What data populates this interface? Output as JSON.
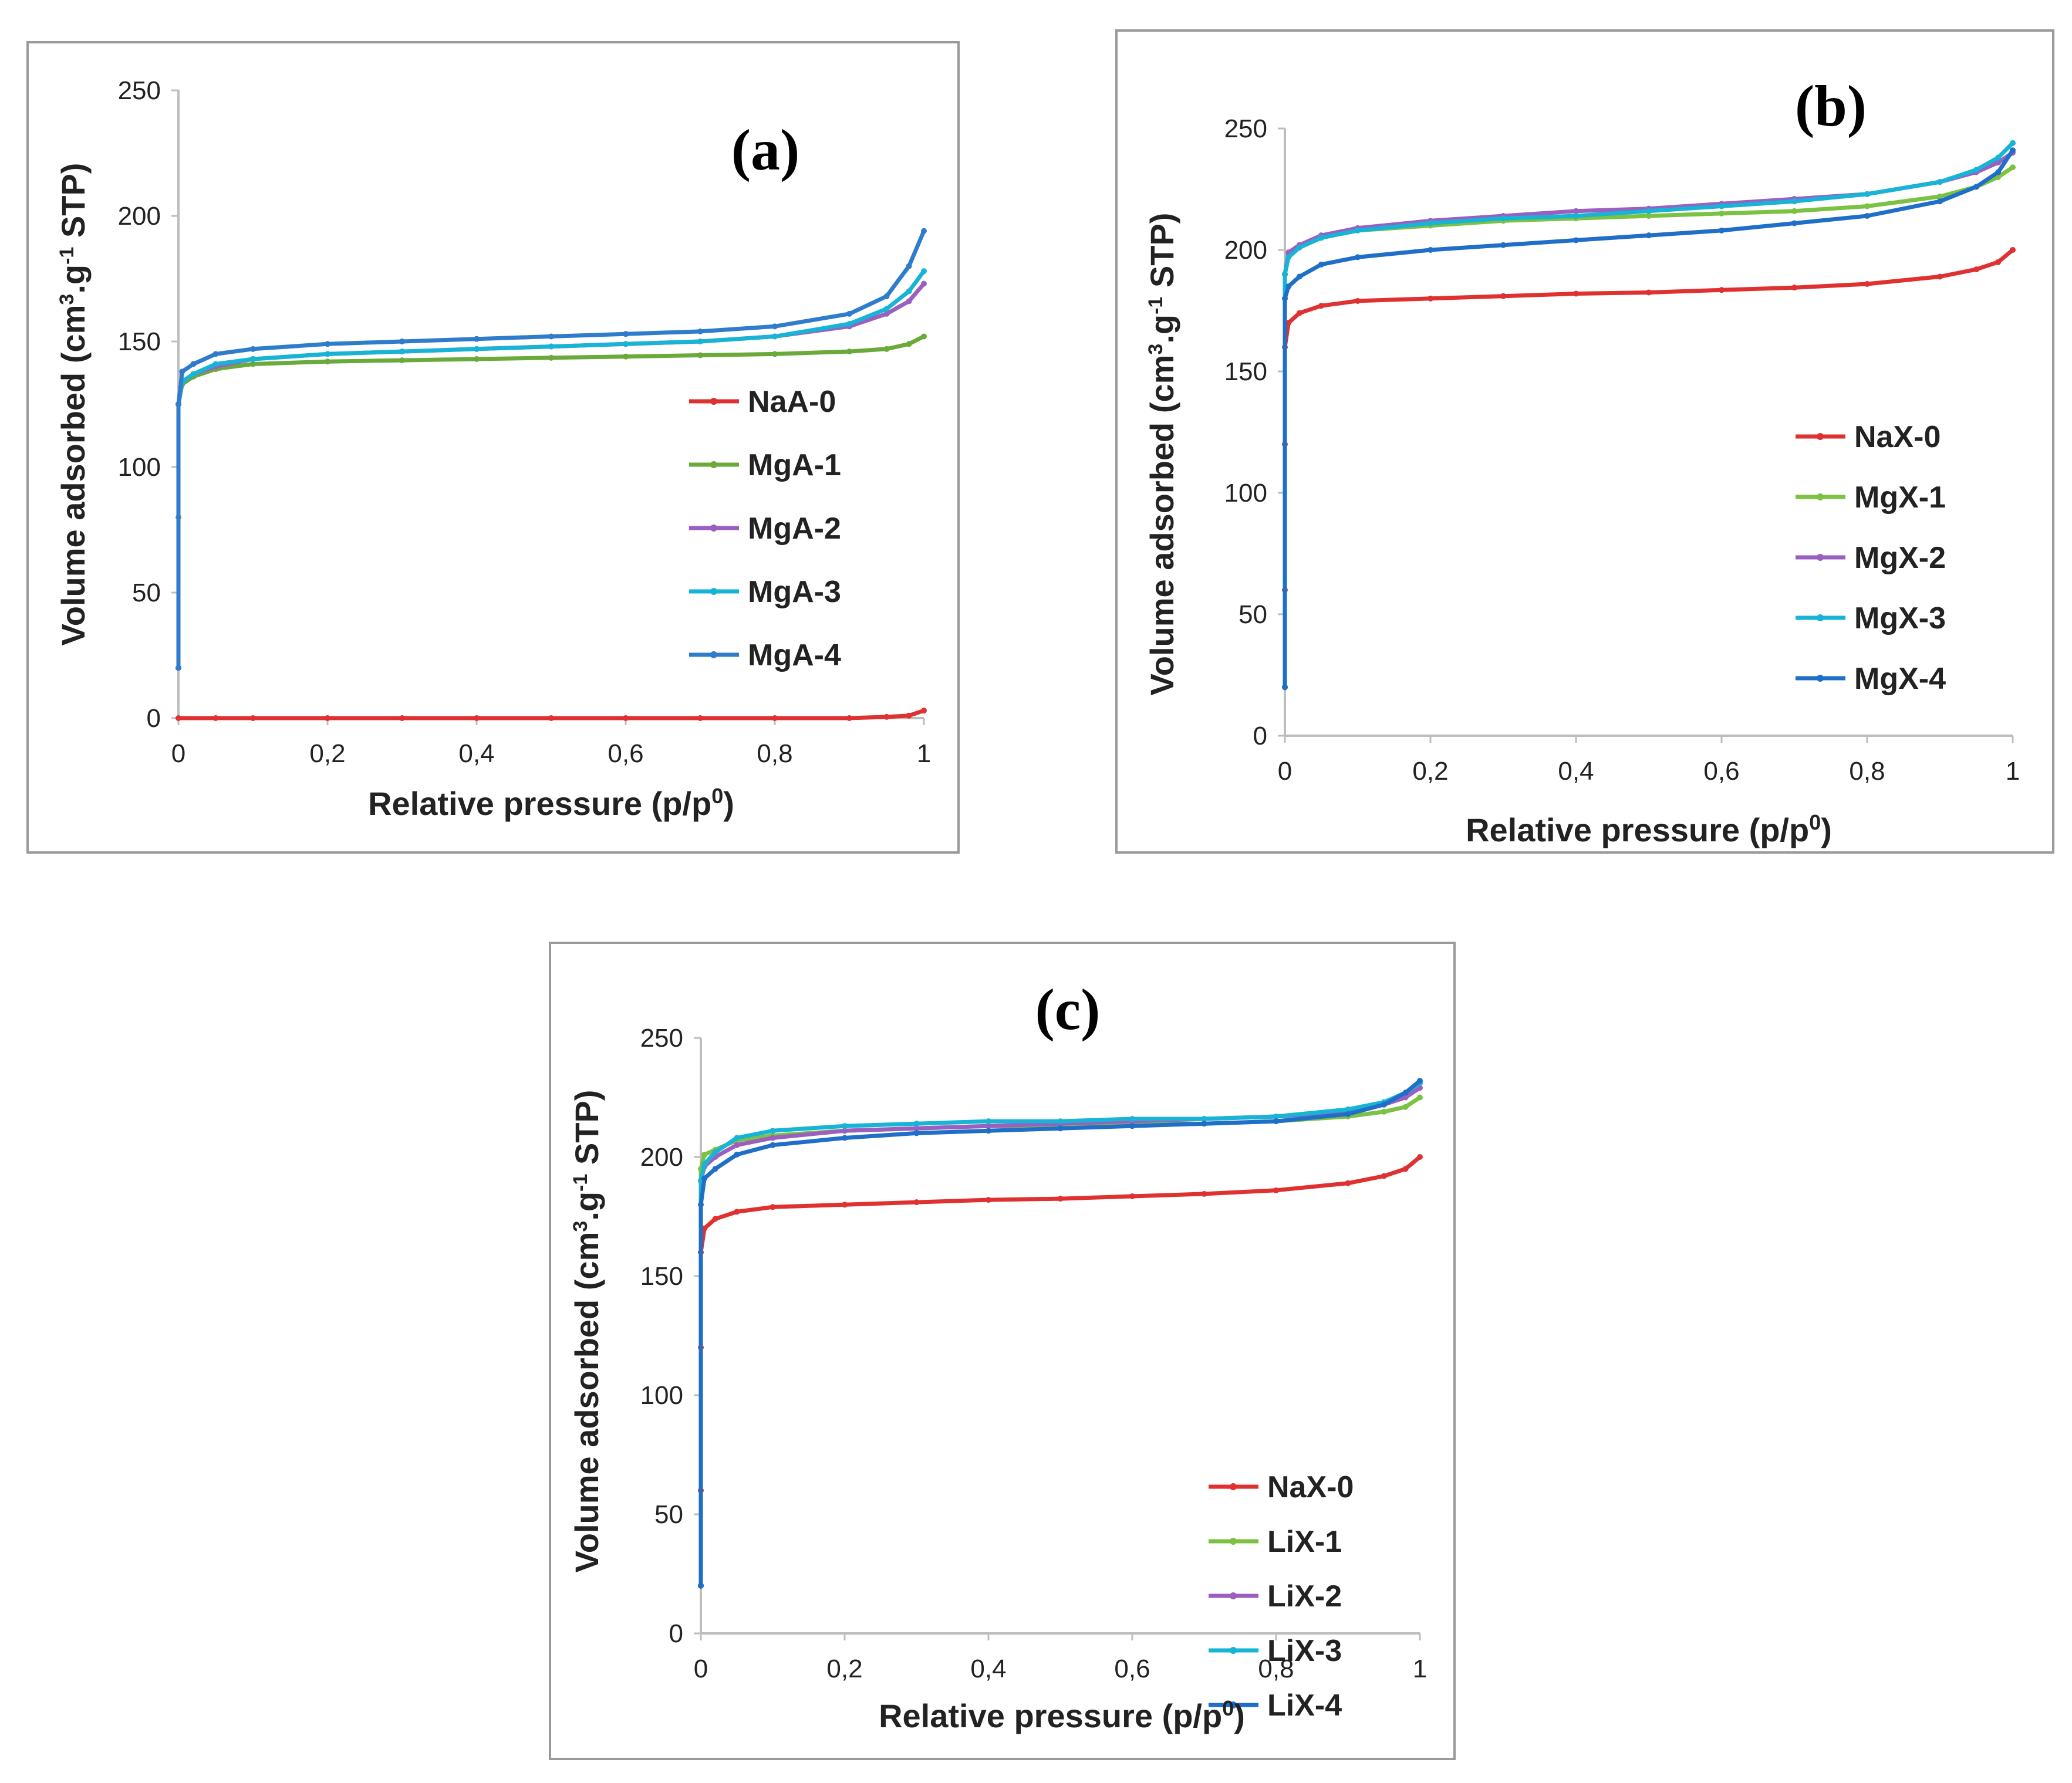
{
  "chart_data": [
    {
      "type": "line",
      "panel_label": "(a)",
      "xlabel": "Relative pressure (p/p",
      "xlabel_sup": "0",
      "xlabel_end": ")",
      "ylabel": "Volume  adsorbed (cm",
      "ylabel_sup1": "3",
      "ylabel_mid": ".g",
      "ylabel_sup2": "-1",
      "ylabel_end": " STP)",
      "xlim": [
        0,
        1
      ],
      "ylim": [
        0,
        250
      ],
      "xticks": [
        "0",
        "0,2",
        "0,4",
        "0,6",
        "0,8",
        "1"
      ],
      "yticks": [
        "0",
        "50",
        "100",
        "150",
        "200",
        "250"
      ],
      "legend_position": "center-right",
      "series": [
        {
          "name": "NaA-0",
          "color": "#e03131",
          "x": [
            0.0,
            0.05,
            0.1,
            0.2,
            0.3,
            0.4,
            0.5,
            0.6,
            0.7,
            0.8,
            0.9,
            0.95,
            0.98,
            1.0
          ],
          "y": [
            0,
            0,
            0,
            0,
            0,
            0,
            0,
            0,
            0,
            0,
            0,
            0.5,
            1,
            3
          ]
        },
        {
          "name": "MgA-1",
          "color": "#6aaa3a",
          "x": [
            0.0,
            0.0,
            0.0,
            0.005,
            0.02,
            0.05,
            0.1,
            0.2,
            0.3,
            0.4,
            0.5,
            0.6,
            0.7,
            0.8,
            0.9,
            0.95,
            0.98,
            1.0
          ],
          "y": [
            20,
            80,
            125,
            133,
            136,
            139,
            141,
            142,
            142.5,
            143,
            143.5,
            144,
            144.5,
            145,
            146,
            147,
            149,
            152
          ]
        },
        {
          "name": "MgA-2",
          "color": "#9b5fc0",
          "x": [
            0.0,
            0.0,
            0.005,
            0.02,
            0.05,
            0.1,
            0.2,
            0.3,
            0.4,
            0.5,
            0.6,
            0.7,
            0.8,
            0.9,
            0.95,
            0.98,
            1.0
          ],
          "y": [
            20,
            125,
            134,
            137,
            140,
            143,
            145,
            146,
            147,
            148,
            149,
            150,
            152,
            156,
            161,
            166,
            173
          ]
        },
        {
          "name": "MgA-3",
          "color": "#17b4d6",
          "x": [
            0.0,
            0.0,
            0.005,
            0.02,
            0.05,
            0.1,
            0.2,
            0.3,
            0.4,
            0.5,
            0.6,
            0.7,
            0.8,
            0.9,
            0.95,
            0.98,
            1.0
          ],
          "y": [
            20,
            125,
            134,
            137,
            141,
            143,
            145,
            146,
            147,
            148,
            149,
            150,
            152,
            157,
            163,
            170,
            178
          ]
        },
        {
          "name": "MgA-4",
          "color": "#2f7ccd",
          "x": [
            0.0,
            0.0,
            0.005,
            0.02,
            0.05,
            0.1,
            0.2,
            0.3,
            0.4,
            0.5,
            0.6,
            0.7,
            0.8,
            0.9,
            0.95,
            0.98,
            1.0
          ],
          "y": [
            20,
            125,
            138,
            141,
            145,
            147,
            149,
            150,
            151,
            152,
            153,
            154,
            156,
            161,
            168,
            180,
            194
          ]
        }
      ]
    },
    {
      "type": "line",
      "panel_label": "(b)",
      "xlabel": "Relative pressure (p/p",
      "xlabel_sup": "0",
      "xlabel_end": ")",
      "ylabel": "Volume  adsorbed (cm",
      "ylabel_sup1": "3",
      "ylabel_mid": ".g",
      "ylabel_sup2": "-1",
      "ylabel_end": " STP)",
      "xlim": [
        0,
        1
      ],
      "ylim": [
        0,
        250
      ],
      "xticks": [
        "0",
        "0,2",
        "0,4",
        "0,6",
        "0,8",
        "1"
      ],
      "yticks": [
        "0",
        "50",
        "100",
        "150",
        "200",
        "250"
      ],
      "legend_position": "center-right",
      "series": [
        {
          "name": "NaX-0",
          "color": "#e03131",
          "x": [
            0.0,
            0.0,
            0.0,
            0.0,
            0.005,
            0.02,
            0.05,
            0.1,
            0.2,
            0.3,
            0.4,
            0.5,
            0.6,
            0.7,
            0.8,
            0.9,
            0.95,
            0.98,
            1.0
          ],
          "y": [
            20,
            60,
            120,
            160,
            170,
            174,
            177,
            179,
            180,
            181,
            182,
            182.5,
            183.5,
            184.5,
            186,
            189,
            192,
            195,
            200
          ]
        },
        {
          "name": "MgX-1",
          "color": "#7cc242",
          "x": [
            0.0,
            0.0,
            0.005,
            0.02,
            0.05,
            0.1,
            0.2,
            0.3,
            0.4,
            0.5,
            0.6,
            0.7,
            0.8,
            0.9,
            0.95,
            0.98,
            1.0
          ],
          "y": [
            20,
            190,
            198,
            201,
            205,
            208,
            210,
            212,
            213,
            214,
            215,
            216,
            218,
            222,
            226,
            230,
            234
          ]
        },
        {
          "name": "MgX-2",
          "color": "#9b5fc0",
          "x": [
            0.0,
            0.0,
            0.005,
            0.02,
            0.05,
            0.1,
            0.2,
            0.3,
            0.4,
            0.5,
            0.6,
            0.7,
            0.8,
            0.9,
            0.95,
            0.98,
            1.0
          ],
          "y": [
            20,
            190,
            199,
            202,
            206,
            209,
            212,
            214,
            216,
            217,
            219,
            221,
            223,
            228,
            232,
            236,
            240
          ]
        },
        {
          "name": "MgX-3",
          "color": "#17b4d6",
          "x": [
            0.0,
            0.0,
            0.005,
            0.02,
            0.05,
            0.1,
            0.2,
            0.3,
            0.4,
            0.5,
            0.6,
            0.7,
            0.8,
            0.9,
            0.95,
            0.98,
            1.0
          ],
          "y": [
            20,
            190,
            197,
            201,
            205,
            208,
            211,
            213,
            214,
            216,
            218,
            220,
            223,
            228,
            233,
            238,
            244
          ]
        },
        {
          "name": "MgX-4",
          "color": "#1f6fc8",
          "x": [
            0.0,
            0.0,
            0.005,
            0.02,
            0.05,
            0.1,
            0.2,
            0.3,
            0.4,
            0.5,
            0.6,
            0.7,
            0.8,
            0.9,
            0.95,
            0.98,
            1.0
          ],
          "y": [
            20,
            180,
            185,
            189,
            194,
            197,
            200,
            202,
            204,
            206,
            208,
            211,
            214,
            220,
            226,
            232,
            241
          ]
        }
      ]
    },
    {
      "type": "line",
      "panel_label": "(c)",
      "xlabel": "Relative pressure (p/p",
      "xlabel_sup": "0",
      "xlabel_end": ")",
      "ylabel": "Volume  adsorbed (cm",
      "ylabel_sup1": "3",
      "ylabel_mid": ".g",
      "ylabel_sup2": "-1",
      "ylabel_end": " STP)",
      "xlim": [
        0,
        1
      ],
      "ylim": [
        0,
        250
      ],
      "xticks": [
        "0",
        "0,2",
        "0,4",
        "0,6",
        "0,8",
        "1"
      ],
      "yticks": [
        "0",
        "50",
        "100",
        "150",
        "200",
        "250"
      ],
      "legend_position": "bottom-right",
      "series": [
        {
          "name": "NaX-0",
          "color": "#e03131",
          "x": [
            0.0,
            0.0,
            0.0,
            0.0,
            0.005,
            0.02,
            0.05,
            0.1,
            0.2,
            0.3,
            0.4,
            0.5,
            0.6,
            0.7,
            0.8,
            0.9,
            0.95,
            0.98,
            1.0
          ],
          "y": [
            20,
            60,
            120,
            160,
            170,
            174,
            177,
            179,
            180,
            181,
            182,
            182.5,
            183.5,
            184.5,
            186,
            189,
            192,
            195,
            200
          ]
        },
        {
          "name": "LiX-1",
          "color": "#7cc242",
          "x": [
            0.0,
            0.0,
            0.005,
            0.02,
            0.05,
            0.1,
            0.2,
            0.3,
            0.4,
            0.5,
            0.6,
            0.7,
            0.8,
            0.9,
            0.95,
            0.98,
            1.0
          ],
          "y": [
            20,
            195,
            201,
            203,
            207,
            209,
            211,
            212,
            213,
            213,
            214,
            214,
            215,
            217,
            219,
            221,
            225
          ]
        },
        {
          "name": "LiX-2",
          "color": "#9b5fc0",
          "x": [
            0.0,
            0.0,
            0.005,
            0.02,
            0.05,
            0.1,
            0.2,
            0.3,
            0.4,
            0.5,
            0.6,
            0.7,
            0.8,
            0.9,
            0.95,
            0.98,
            1.0
          ],
          "y": [
            20,
            190,
            196,
            200,
            205,
            208,
            211,
            212,
            213,
            214,
            215,
            216,
            217,
            219,
            222,
            225,
            229
          ]
        },
        {
          "name": "LiX-3",
          "color": "#17b4d6",
          "x": [
            0.0,
            0.0,
            0.005,
            0.02,
            0.05,
            0.1,
            0.2,
            0.3,
            0.4,
            0.5,
            0.6,
            0.7,
            0.8,
            0.9,
            0.95,
            0.98,
            1.0
          ],
          "y": [
            20,
            190,
            197,
            202,
            208,
            211,
            213,
            214,
            215,
            215,
            216,
            216,
            217,
            220,
            223,
            227,
            231
          ]
        },
        {
          "name": "LiX-4",
          "color": "#1f6fc8",
          "x": [
            0.0,
            0.0,
            0.005,
            0.02,
            0.05,
            0.1,
            0.2,
            0.3,
            0.4,
            0.5,
            0.6,
            0.7,
            0.8,
            0.9,
            0.95,
            0.98,
            1.0
          ],
          "y": [
            20,
            180,
            191,
            195,
            201,
            205,
            208,
            210,
            211,
            212,
            213,
            214,
            215,
            218,
            222,
            227,
            232
          ]
        }
      ]
    }
  ]
}
